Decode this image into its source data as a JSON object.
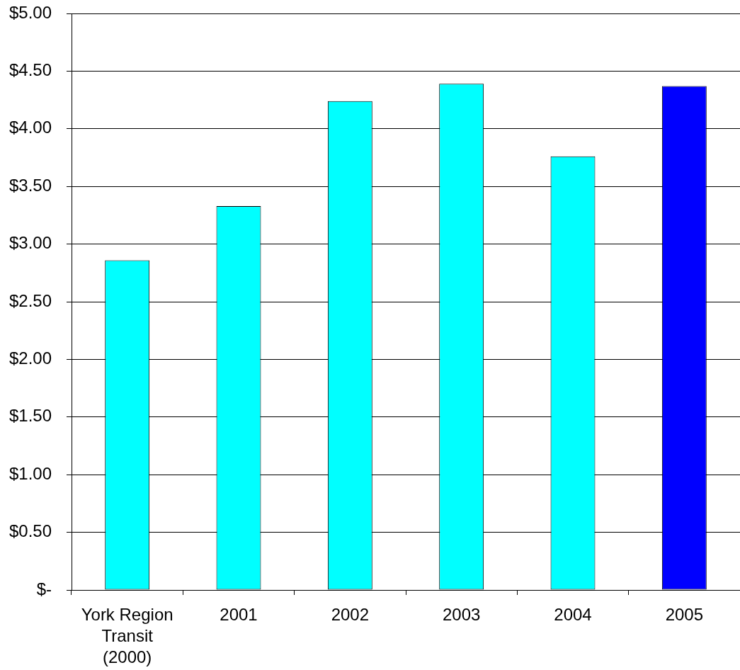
{
  "chart_data": {
    "type": "bar",
    "categories": [
      "York Region Transit (2000)",
      "2001",
      "2002",
      "2003",
      "2004",
      "2005"
    ],
    "values": [
      2.86,
      3.33,
      4.24,
      4.39,
      3.76,
      4.37
    ],
    "colors": [
      "#00ffff",
      "#00ffff",
      "#00ffff",
      "#00ffff",
      "#00ffff",
      "#0000ff"
    ],
    "ylim": [
      0,
      5
    ],
    "yticks": [
      {
        "value": 0,
        "label": "$-"
      },
      {
        "value": 0.5,
        "label": "$0.50"
      },
      {
        "value": 1,
        "label": "$1.00"
      },
      {
        "value": 1.5,
        "label": "$1.50"
      },
      {
        "value": 2,
        "label": "$2.00"
      },
      {
        "value": 2.5,
        "label": "$2.50"
      },
      {
        "value": 3,
        "label": "$3.00"
      },
      {
        "value": 3.5,
        "label": "$3.50"
      },
      {
        "value": 4,
        "label": "$4.00"
      },
      {
        "value": 4.5,
        "label": "$4.50"
      },
      {
        "value": 5,
        "label": "$5.00"
      }
    ],
    "grid": "y"
  }
}
